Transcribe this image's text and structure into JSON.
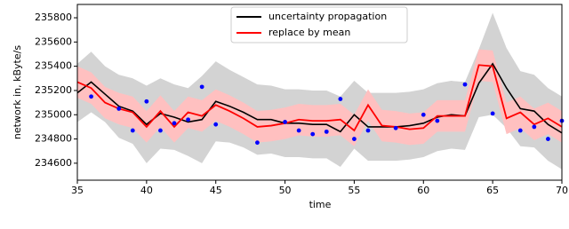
{
  "chart_data": {
    "type": "line",
    "xlabel": "time",
    "ylabel": "network in, kByte/s",
    "x": [
      35,
      36,
      37,
      38,
      39,
      40,
      41,
      42,
      43,
      44,
      45,
      46,
      47,
      48,
      49,
      50,
      51,
      52,
      53,
      54,
      55,
      56,
      57,
      58,
      59,
      60,
      61,
      62,
      63,
      64,
      65,
      66,
      67,
      68,
      69,
      70
    ],
    "series": [
      {
        "name": "uncertainty propagation",
        "color": "#000000",
        "values": [
          235180,
          235270,
          235170,
          235070,
          235030,
          234920,
          235010,
          234980,
          234940,
          234960,
          235110,
          235070,
          235020,
          234960,
          234960,
          234930,
          234930,
          234920,
          234920,
          234860,
          235000,
          234900,
          234900,
          234900,
          234910,
          234930,
          234980,
          235000,
          234990,
          235260,
          235420,
          235220,
          235050,
          235030,
          234920,
          234850
        ]
      },
      {
        "name": "replace by mean",
        "color": "#ff0000",
        "values": [
          235270,
          235220,
          235100,
          235050,
          235020,
          234900,
          235030,
          234900,
          235020,
          234990,
          235080,
          235030,
          234970,
          234900,
          234910,
          234930,
          234960,
          234950,
          234950,
          234960,
          234870,
          235080,
          234910,
          234900,
          234880,
          234890,
          234990,
          234990,
          234990,
          235410,
          235400,
          234970,
          235020,
          234920,
          234970,
          234900
        ]
      }
    ],
    "bands": [
      {
        "color": "#d3d3d3",
        "upper": [
          235420,
          235520,
          235400,
          235330,
          235300,
          235240,
          235300,
          235250,
          235220,
          235320,
          235440,
          235370,
          235310,
          235250,
          235240,
          235210,
          235210,
          235200,
          235200,
          235150,
          235280,
          235180,
          235180,
          235180,
          235190,
          235210,
          235260,
          235280,
          235270,
          235540,
          235840,
          235550,
          235360,
          235330,
          235220,
          235150
        ],
        "lower": [
          234940,
          235020,
          234940,
          234810,
          234760,
          234600,
          234720,
          234710,
          234660,
          234600,
          234780,
          234770,
          234730,
          234670,
          234680,
          234650,
          234650,
          234640,
          234640,
          234570,
          234720,
          234620,
          234620,
          234620,
          234630,
          234650,
          234700,
          234720,
          234710,
          234980,
          235000,
          234890,
          234740,
          234730,
          234620,
          234550
        ]
      },
      {
        "color": "#ffc0c0",
        "upper": [
          235400,
          235350,
          235230,
          235180,
          235150,
          235030,
          235160,
          235030,
          235150,
          235120,
          235210,
          235160,
          235100,
          235030,
          235040,
          235060,
          235090,
          235080,
          235080,
          235090,
          235000,
          235210,
          235040,
          235030,
          235010,
          235020,
          235120,
          235120,
          235120,
          235540,
          235530,
          235100,
          235150,
          235050,
          235100,
          235030
        ],
        "lower": [
          235140,
          235090,
          234970,
          234920,
          234890,
          234770,
          234900,
          234770,
          234890,
          234860,
          234950,
          234900,
          234840,
          234770,
          234780,
          234800,
          234830,
          234820,
          234820,
          234830,
          234740,
          234950,
          234780,
          234770,
          234750,
          234760,
          234860,
          234860,
          234860,
          235280,
          235270,
          234840,
          234890,
          234790,
          234840,
          234770
        ]
      }
    ],
    "points": {
      "color": "#0000ff",
      "x": [
        36,
        38,
        39,
        40,
        41,
        42,
        43,
        44,
        45,
        48,
        50,
        51,
        52,
        53,
        54,
        55,
        56,
        58,
        60,
        61,
        63,
        65,
        67,
        68,
        69,
        70
      ],
      "values": [
        235150,
        235050,
        234870,
        235110,
        234870,
        234930,
        234960,
        235230,
        234920,
        234770,
        234940,
        234870,
        234840,
        234860,
        235130,
        234800,
        234870,
        234890,
        235000,
        234950,
        235250,
        235010,
        234870,
        234900,
        234800,
        234950
      ]
    },
    "xlim": [
      35,
      70
    ],
    "xticks": [
      35,
      40,
      45,
      50,
      55,
      60,
      65,
      70
    ],
    "ylim": [
      234460,
      235910
    ],
    "yticks": [
      234600,
      234800,
      235000,
      235200,
      235400,
      235600,
      235800
    ],
    "legend": "upper center"
  }
}
